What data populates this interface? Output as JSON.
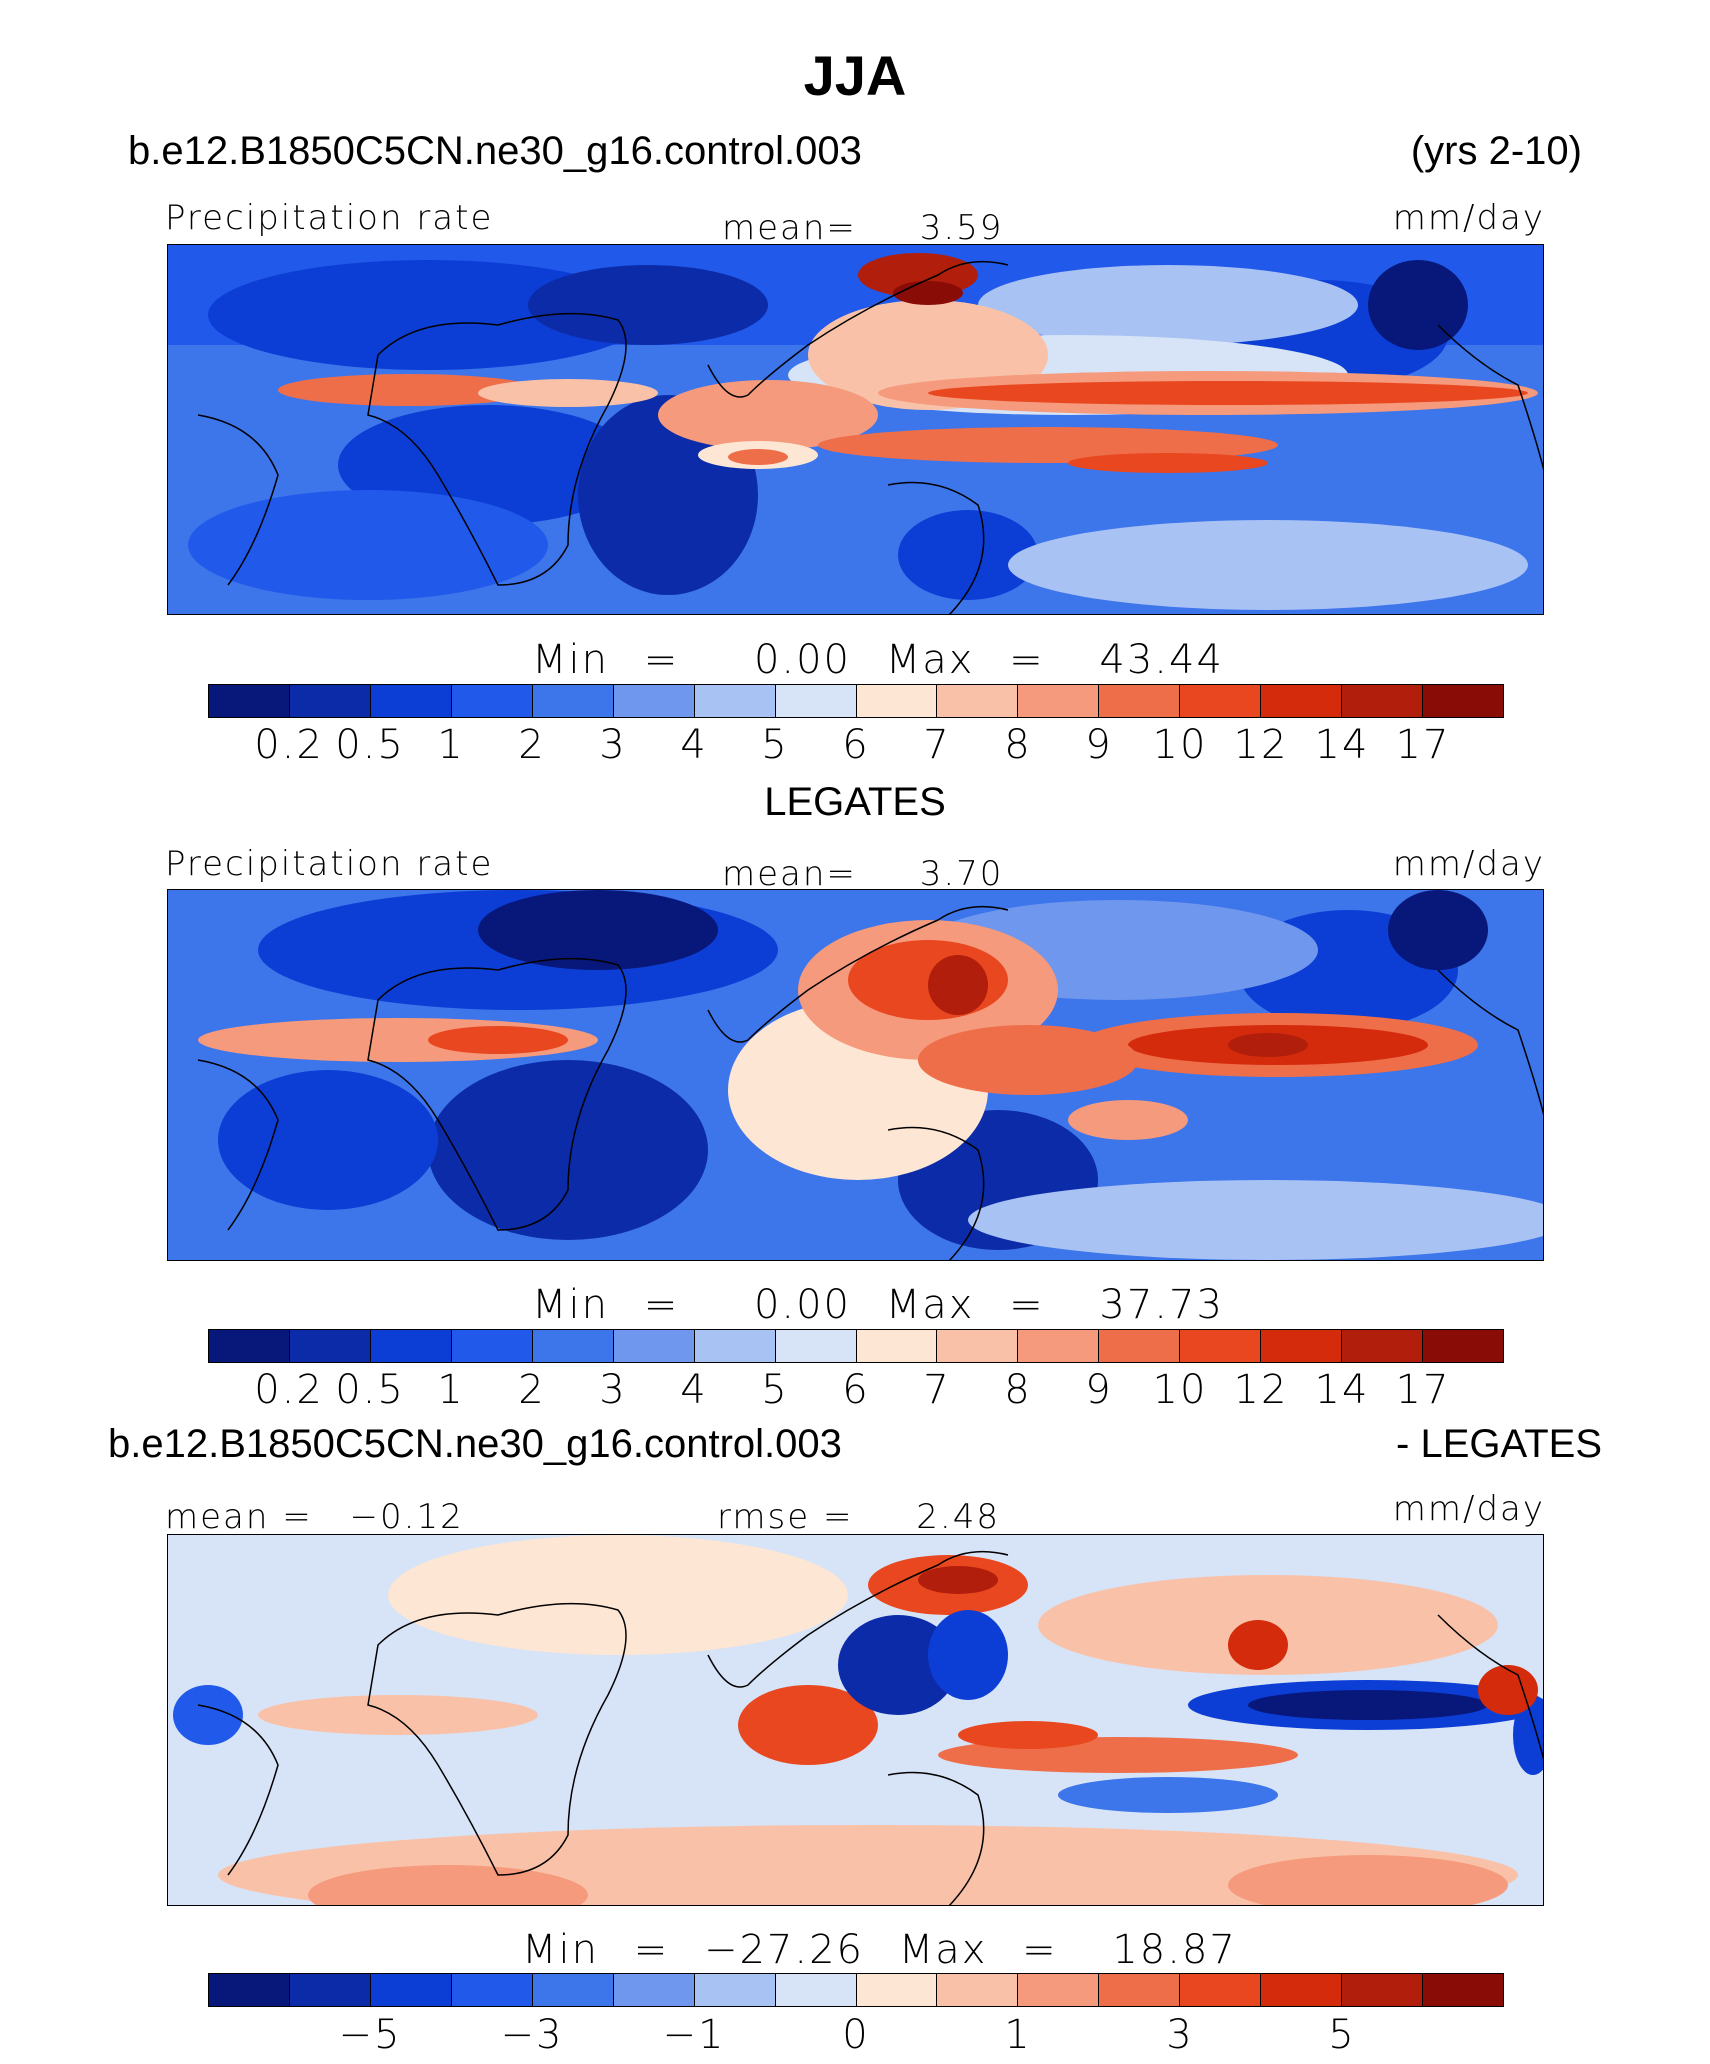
{
  "figure_title": "JJA",
  "panels": [
    {
      "id": "model",
      "case_name": "b.e12.B1850C5CN.ne30_g16.control.003",
      "period": "(yrs 2-10)",
      "variable": "Precipitation rate",
      "mean_label": "mean=",
      "mean_value": "3.59",
      "units": "mm/day",
      "min_label": "Min",
      "min_value": "0.00",
      "max_label": "Max",
      "max_value": "43.44"
    },
    {
      "id": "obs",
      "title": "LEGATES",
      "variable": "Precipitation rate",
      "mean_label": "mean=",
      "mean_value": "3.70",
      "units": "mm/day",
      "min_label": "Min",
      "min_value": "0.00",
      "max_label": "Max",
      "max_value": "37.73"
    },
    {
      "id": "diff",
      "case_name": "b.e12.B1850C5CN.ne30_g16.control.003",
      "suffix": "- LEGATES",
      "mean_label": "mean =",
      "mean_value": "−0.12",
      "rmse_label": "rmse =",
      "rmse_value": "2.48",
      "units": "mm/day",
      "min_label": "Min",
      "min_value": "−27.26",
      "max_label": "Max",
      "max_value": "18.87"
    }
  ],
  "colors": {
    "precip_scale": [
      "#08187a",
      "#0b2ba8",
      "#0c3ed6",
      "#2159ea",
      "#3d75ea",
      "#6f97ee",
      "#a8c2f4",
      "#d7e3f6",
      "#fde6d4",
      "#f9c2a8",
      "#f59a7c",
      "#ef6e4a",
      "#e8471f",
      "#d42b0c",
      "#b11e0b",
      "#8a0c07"
    ],
    "diff_scale": [
      "#08187a",
      "#0b2ba8",
      "#0c3ed6",
      "#2159ea",
      "#3d75ea",
      "#6f97ee",
      "#a8c2f4",
      "#d7e3f6",
      "#fde6d4",
      "#f9c2a8",
      "#f59a7c",
      "#ef6e4a",
      "#e8471f",
      "#d42b0c",
      "#b11e0b",
      "#8a0c07"
    ]
  },
  "chart_data": [
    {
      "type": "heatmap",
      "title": "b.e12.B1850C5CN.ne30_g16.control.003 (yrs 2-10)",
      "subtitle": "Precipitation rate",
      "units": "mm/day",
      "mean": 3.59,
      "min": 0.0,
      "max": 43.44,
      "contour_levels": [
        0.2,
        0.5,
        1,
        2,
        3,
        4,
        5,
        6,
        7,
        8,
        9,
        10,
        12,
        14,
        17
      ],
      "tick_labels": [
        "0.2",
        "0.5",
        "1",
        "2",
        "3",
        "4",
        "5",
        "6",
        "7",
        "8",
        "9",
        "10",
        "12",
        "14",
        "17"
      ]
    },
    {
      "type": "heatmap",
      "title": "LEGATES",
      "subtitle": "Precipitation rate",
      "units": "mm/day",
      "mean": 3.7,
      "min": 0.0,
      "max": 37.73,
      "contour_levels": [
        0.2,
        0.5,
        1,
        2,
        3,
        4,
        5,
        6,
        7,
        8,
        9,
        10,
        12,
        14,
        17
      ],
      "tick_labels": [
        "0.2",
        "0.5",
        "1",
        "2",
        "3",
        "4",
        "5",
        "6",
        "7",
        "8",
        "9",
        "10",
        "12",
        "14",
        "17"
      ]
    },
    {
      "type": "heatmap",
      "title": "b.e12.B1850C5CN.ne30_g16.control.003 - LEGATES",
      "units": "mm/day",
      "mean": -0.12,
      "rmse": 2.48,
      "min": -27.26,
      "max": 18.87,
      "tick_labels": [
        "−5",
        "−3",
        "−1",
        "0",
        "1",
        "3",
        "5"
      ]
    }
  ]
}
